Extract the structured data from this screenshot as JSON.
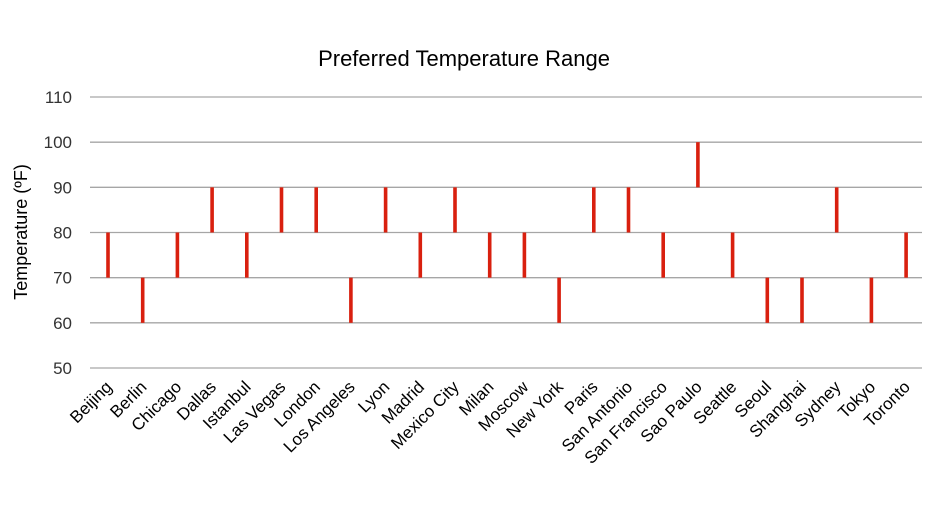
{
  "chart_data": {
    "type": "bar",
    "subtype": "floating-range",
    "title": "Preferred Temperature Range",
    "ylabel": "Temperature (ºF)",
    "xlabel": "",
    "ylim": [
      50,
      110
    ],
    "yticks": [
      50,
      60,
      70,
      80,
      90,
      100,
      110
    ],
    "grid": true,
    "color": "#d9200f",
    "categories": [
      "Beijing",
      "Berlin",
      "Chicago",
      "Dallas",
      "Istanbul",
      "Las Vegas",
      "London",
      "Los Angeles",
      "Lyon",
      "Madrid",
      "Mexico City",
      "Milan",
      "Moscow",
      "New York",
      "Paris",
      "San Antonio",
      "San Francisco",
      "Sao Paulo",
      "Seattle",
      "Seoul",
      "Shanghai",
      "Sydney",
      "Tokyo",
      "Toronto"
    ],
    "low": [
      70,
      60,
      70,
      80,
      70,
      80,
      80,
      60,
      80,
      70,
      80,
      70,
      70,
      60,
      80,
      80,
      70,
      90,
      70,
      60,
      60,
      80,
      60,
      70
    ],
    "high": [
      80,
      70,
      80,
      90,
      80,
      90,
      90,
      70,
      90,
      80,
      90,
      80,
      80,
      70,
      90,
      90,
      80,
      100,
      80,
      70,
      70,
      90,
      70,
      80
    ]
  }
}
